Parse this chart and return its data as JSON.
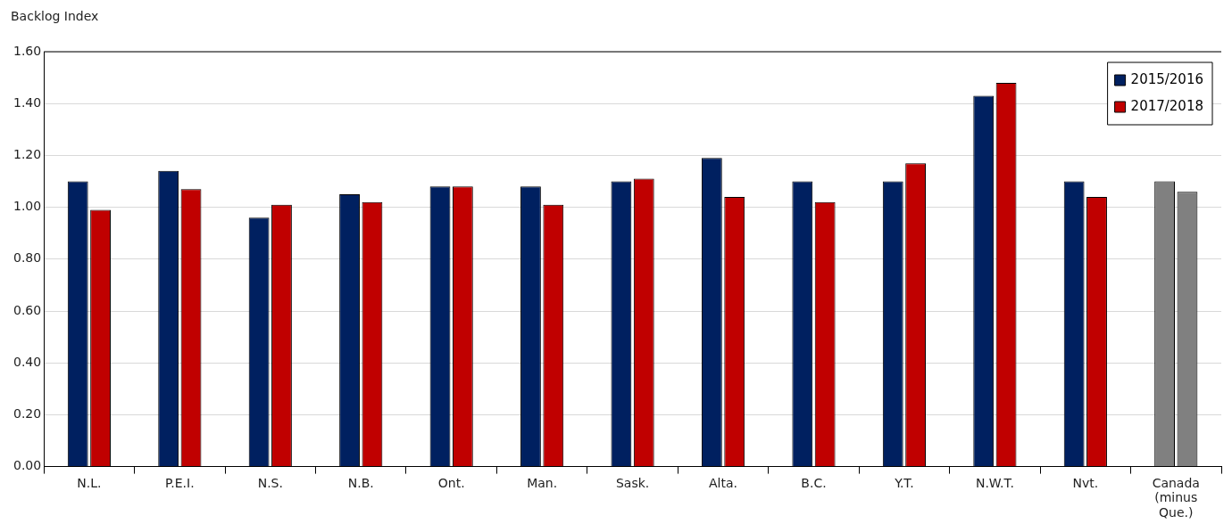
{
  "chart_data": {
    "type": "bar",
    "ylabel": "Backlog Index",
    "categories": [
      "N.L.",
      "P.E.I.",
      "N.S.",
      "N.B.",
      "Ont.",
      "Man.",
      "Sask.",
      "Alta.",
      "B.C.",
      "Y.T.",
      "N.W.T.",
      "Nvt.",
      "Canada (minus Que.)"
    ],
    "series": [
      {
        "name": "2015/2016",
        "color": "#002060",
        "colors": [
          "#002060",
          "#002060",
          "#002060",
          "#002060",
          "#002060",
          "#002060",
          "#002060",
          "#002060",
          "#002060",
          "#002060",
          "#002060",
          "#002060",
          "#808080"
        ],
        "values": [
          1.1,
          1.14,
          0.96,
          1.05,
          1.08,
          1.08,
          1.1,
          1.19,
          1.1,
          1.1,
          1.43,
          1.1,
          1.1
        ]
      },
      {
        "name": "2017/2018",
        "color": "#c00000",
        "colors": [
          "#c00000",
          "#c00000",
          "#c00000",
          "#c00000",
          "#c00000",
          "#c00000",
          "#c00000",
          "#c00000",
          "#c00000",
          "#c00000",
          "#c00000",
          "#c00000",
          "#808080"
        ],
        "values": [
          0.99,
          1.07,
          1.01,
          1.02,
          1.08,
          1.01,
          1.11,
          1.04,
          1.02,
          1.17,
          1.48,
          1.04,
          1.06
        ]
      }
    ],
    "ylim": [
      0,
      1.6
    ],
    "yticks": [
      {
        "value": 0,
        "label": "0.00"
      },
      {
        "value": 0.2,
        "label": "0.20"
      },
      {
        "value": 0.4,
        "label": "0.40"
      },
      {
        "value": 0.6,
        "label": "0.60"
      },
      {
        "value": 0.8,
        "label": "0.80"
      },
      {
        "value": 1,
        "label": "1.00"
      },
      {
        "value": 1.2,
        "label": "1.20"
      },
      {
        "value": 1.4,
        "label": "1.40"
      },
      {
        "value": 1.6,
        "label": "1.60"
      }
    ],
    "grid": "y",
    "legend": "top right"
  }
}
